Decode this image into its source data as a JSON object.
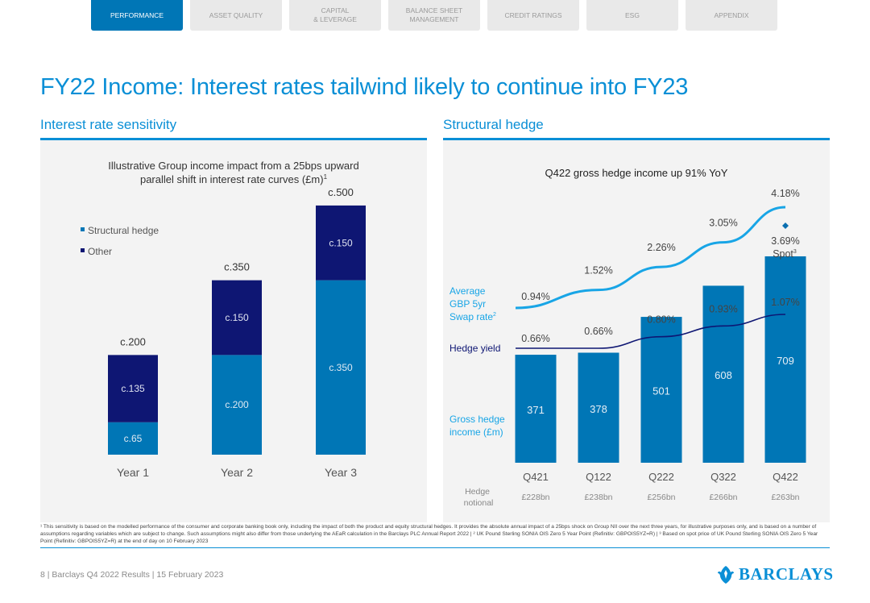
{
  "nav": {
    "tabs": [
      {
        "label": "PERFORMANCE",
        "active": true
      },
      {
        "label": "ASSET QUALITY",
        "active": false
      },
      {
        "label": "CAPITAL\n& LEVERAGE",
        "active": false
      },
      {
        "label": "BALANCE SHEET\nMANAGEMENT",
        "active": false
      },
      {
        "label": "CREDIT RATINGS",
        "active": false
      },
      {
        "label": "ESG",
        "active": false
      },
      {
        "label": "APPENDIX",
        "active": false
      }
    ]
  },
  "page_title": "FY22 Income: Interest rates tailwind likely to continue into FY23",
  "left_section_title": "Interest rate sensitivity",
  "right_section_title": "Structural hedge",
  "colors": {
    "light_blue": "#0076b6",
    "dark_navy": "#0e1673",
    "accent": "#0a8fd6",
    "swap_line": "#18a5e6"
  },
  "chart_data": [
    {
      "type": "bar",
      "stacked": true,
      "title": "Illustrative Group income impact from a 25bps upward parallel shift in interest rate curves (£m)",
      "title_line1": "Illustrative Group income impact from a 25bps upward",
      "title_line2": "parallel shift in interest rate curves (£m)",
      "title_sup": "1",
      "categories": [
        "Year 1",
        "Year 2",
        "Year 3"
      ],
      "series": [
        {
          "name": "Structural hedge",
          "values": [
            65,
            200,
            350
          ],
          "labels": [
            "c.65",
            "c.200",
            "c.350"
          ],
          "color": "#0076b6"
        },
        {
          "name": "Other",
          "values": [
            135,
            150,
            150
          ],
          "labels": [
            "c.135",
            "c.150",
            "c.150"
          ],
          "color": "#0e1673"
        }
      ],
      "totals": [
        200,
        350,
        500
      ],
      "total_labels": [
        "c.200",
        "c.350",
        "c.500"
      ],
      "legend": [
        "Structural hedge",
        "Other"
      ],
      "ylim": [
        0,
        550
      ]
    },
    {
      "type": "bar",
      "title": "Q422 gross hedge income up 91% YoY",
      "categories": [
        "Q421",
        "Q122",
        "Q222",
        "Q322",
        "Q422"
      ],
      "bars": {
        "name": "Gross hedge income (£m)",
        "values": [
          371,
          378,
          501,
          608,
          709
        ]
      },
      "lines": [
        {
          "name": "Average GBP 5yr Swap rate",
          "values": [
            0.94,
            1.52,
            2.26,
            3.05,
            4.18
          ],
          "labels": [
            "0.94%",
            "1.52%",
            "2.26%",
            "3.05%",
            "4.18%"
          ]
        },
        {
          "name": "Hedge yield",
          "values": [
            0.66,
            0.66,
            0.8,
            0.93,
            1.07
          ],
          "labels": [
            "0.66%",
            "0.66%",
            "0.80%",
            "0.93%",
            "1.07%"
          ]
        }
      ],
      "spot": {
        "value": 3.69,
        "label": "3.69%",
        "caption": "Spot",
        "sup": "3"
      },
      "swap_label_lines": [
        "Average",
        "GBP 5yr",
        "Swap rate"
      ],
      "swap_label_sup": "2",
      "hedge_yield_label": "Hedge yield",
      "gross_income_label_lines": [
        "Gross hedge",
        "income (£m)"
      ],
      "notional_label_lines": [
        "Hedge",
        "notional"
      ],
      "notional": [
        "£228bn",
        "£238bn",
        "£256bn",
        "£266bn",
        "£263bn"
      ],
      "ylim": [
        0,
        900
      ]
    }
  ],
  "footnote": "¹ This sensitivity is based on the modelled performance of the consumer and corporate banking book only, including the impact of both the product and equity structural hedges. It provides the absolute annual impact of a 25bps shock on Group NII over the next three years, for illustrative purposes only, and is based on a number of assumptions regarding variables which are subject to change. Such assumptions might also differ from those underlying the AEaR calculation in the Barclays PLC Annual Report 2022 | ² UK Pound Sterling SONIA OIS Zero 5 Year Point (Refinitiv: GBPOIS5YZ=R) | ³ Based on spot price of UK Pound Sterling SONIA OIS Zero 5 Year Point (Refinitiv: GBPOIS5YZ=R) at the end of day on 10 February 2023",
  "footer": {
    "page": "8",
    "sep1": "|",
    "report": "Barclays Q4 2022 Results",
    "sep2": "|",
    "date": "15 February 2023"
  },
  "logo": {
    "text": "BARCLAYS",
    "icon": "eagle-icon"
  }
}
